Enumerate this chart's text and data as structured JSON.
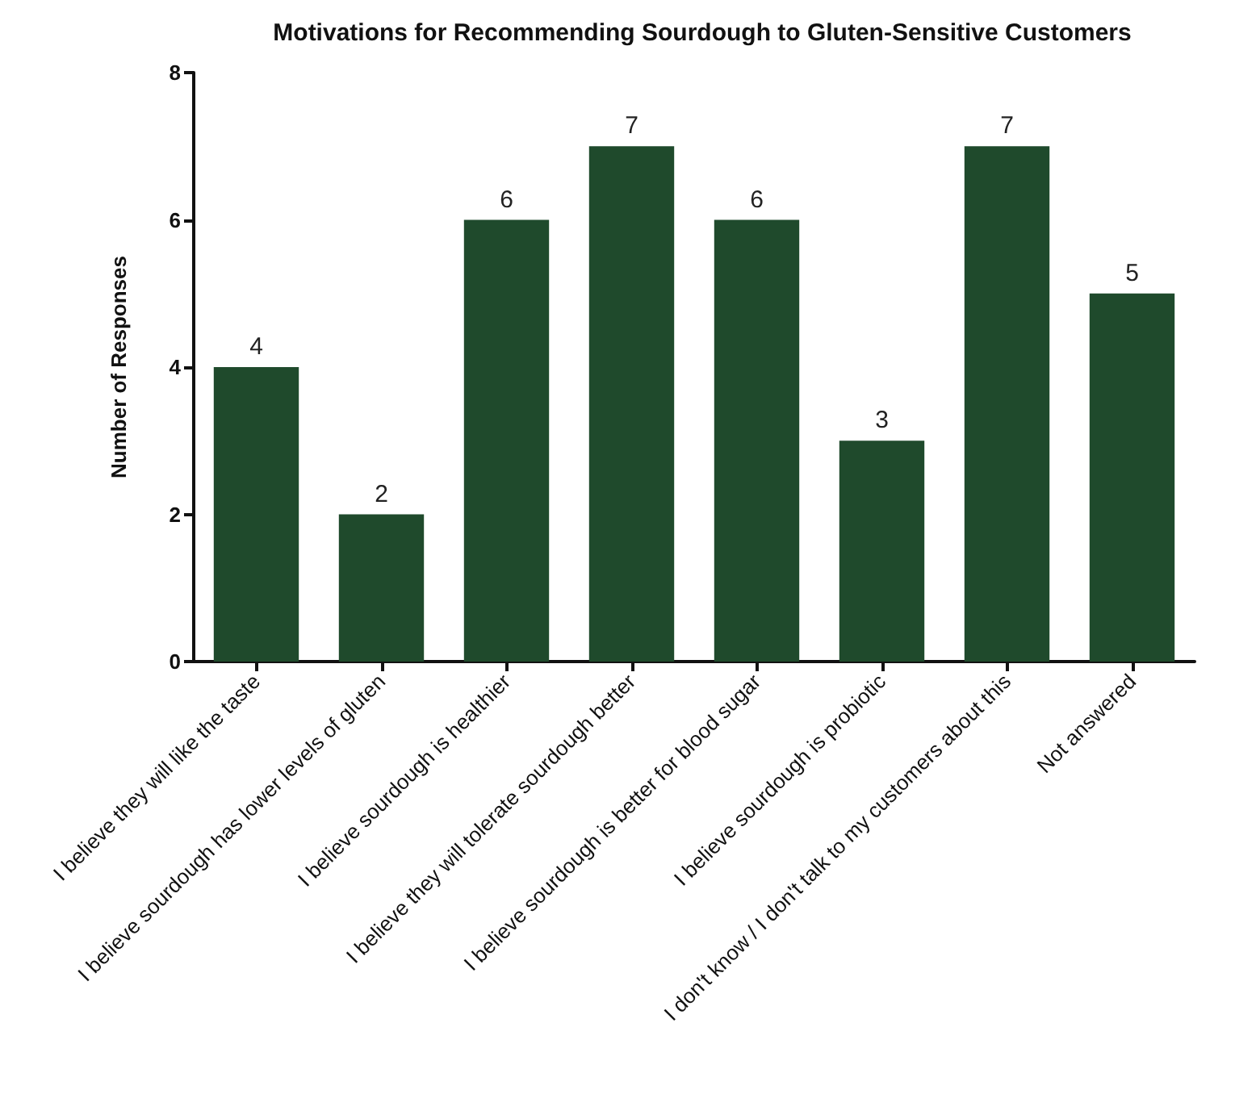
{
  "chart_data": {
    "type": "bar",
    "title": "Motivations for Recommending Sourdough to Gluten-Sensitive Customers",
    "ylabel": "Number of Responses",
    "categories": [
      "I believe they will like the taste",
      "I believe sourdough has lower levels of gluten",
      "I believe sourdough is healthier",
      "I believe they will tolerate sourdough better",
      "I believe sourdough is better for blood sugar",
      "I believe sourdough is probiotic",
      "I don't know / I don't talk to my customers about this",
      "Not answered"
    ],
    "values": [
      4,
      2,
      6,
      7,
      6,
      3,
      7,
      5
    ],
    "color": "#1f4a2c",
    "ylim": [
      0,
      8
    ],
    "yticks": [
      0,
      2,
      4,
      6,
      8
    ],
    "grid": false,
    "data_labels": true
  }
}
